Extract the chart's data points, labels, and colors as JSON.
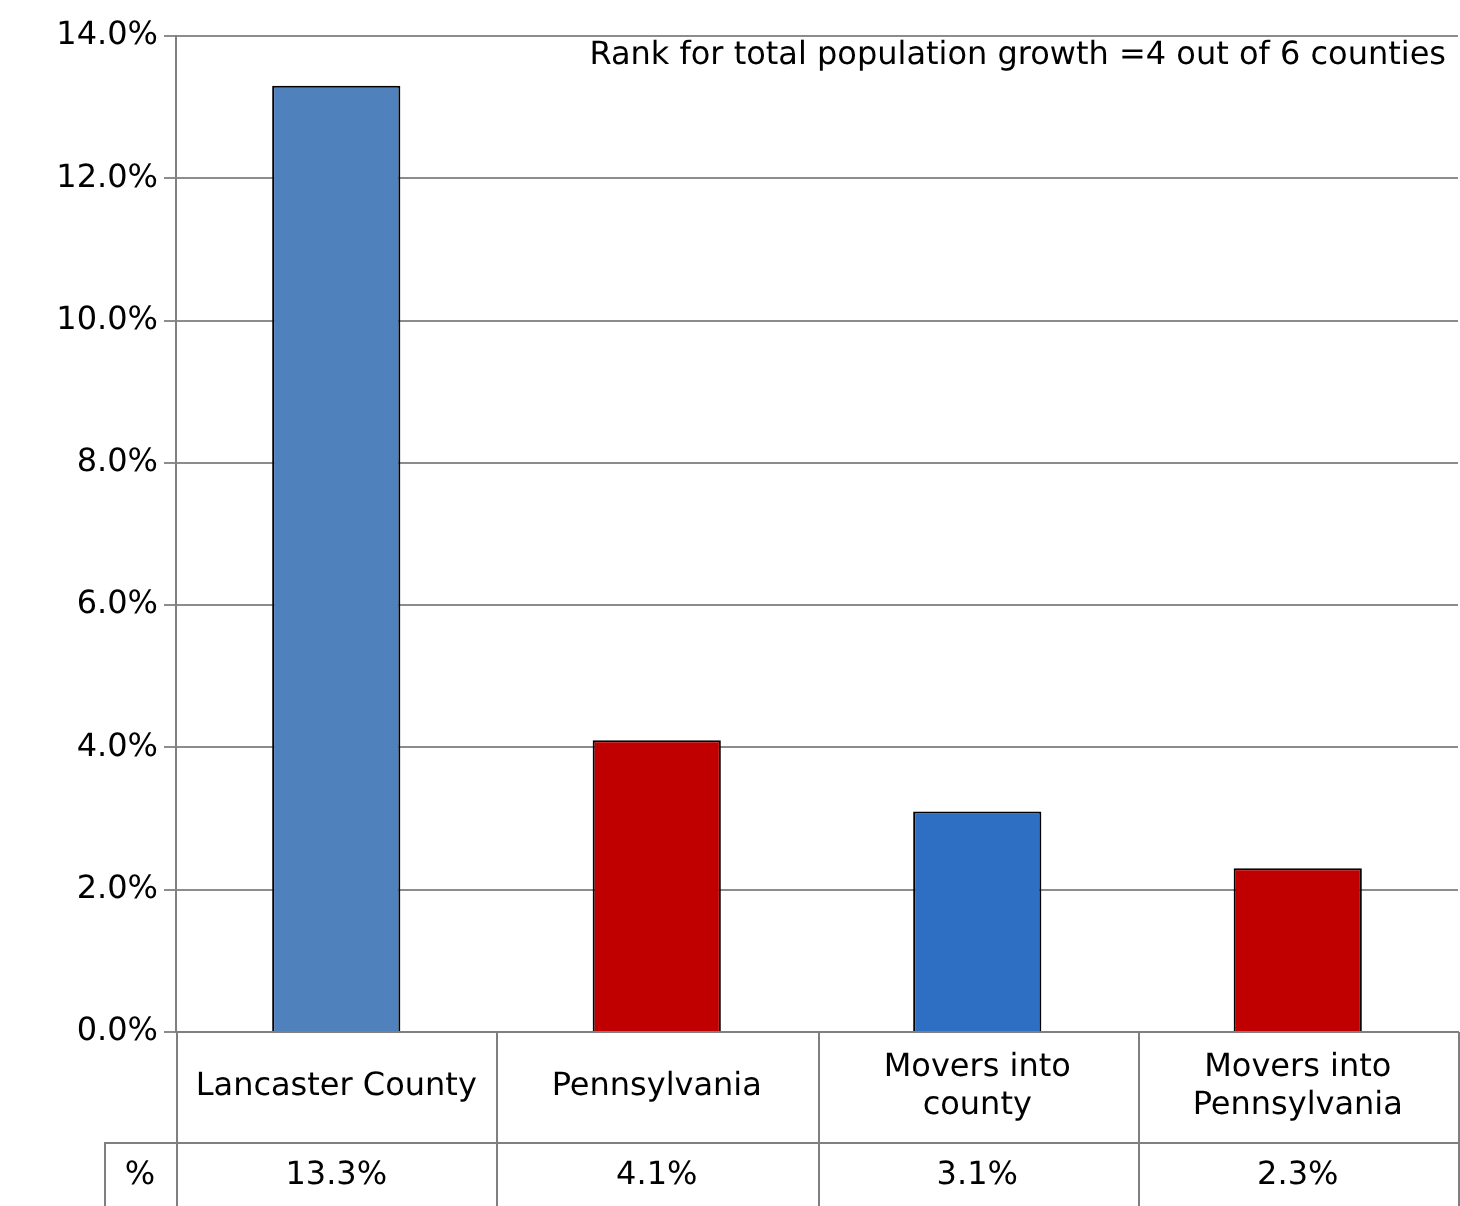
{
  "chart_data": {
    "type": "bar",
    "categories": [
      "Lancaster County",
      "Pennsylvania",
      "Movers into county",
      "Movers into Pennsylvania"
    ],
    "series": [
      {
        "name": "%",
        "colors": [
          "#4f81bd",
          "#c00000",
          "#2e6fc4",
          "#c00000"
        ],
        "values": [
          13.3,
          4.1,
          3.1,
          2.3
        ]
      }
    ],
    "ylim": [
      0,
      14
    ],
    "yticks": [
      {
        "value": 0,
        "label": "0.0%"
      },
      {
        "value": 2,
        "label": "2.0%"
      },
      {
        "value": 4,
        "label": "4.0%"
      },
      {
        "value": 6,
        "label": "6.0%"
      },
      {
        "value": 8,
        "label": "8.0%"
      },
      {
        "value": 10,
        "label": "10.0%"
      },
      {
        "value": 12,
        "label": "12.0%"
      },
      {
        "value": 14,
        "label": "14.0%"
      }
    ],
    "value_labels": [
      "13.3%",
      "4.1%",
      "3.1%",
      "2.3%"
    ],
    "annotations": [
      "Rank for total population growth =4 out of 6 counties"
    ],
    "grid": "y",
    "legend": false
  }
}
